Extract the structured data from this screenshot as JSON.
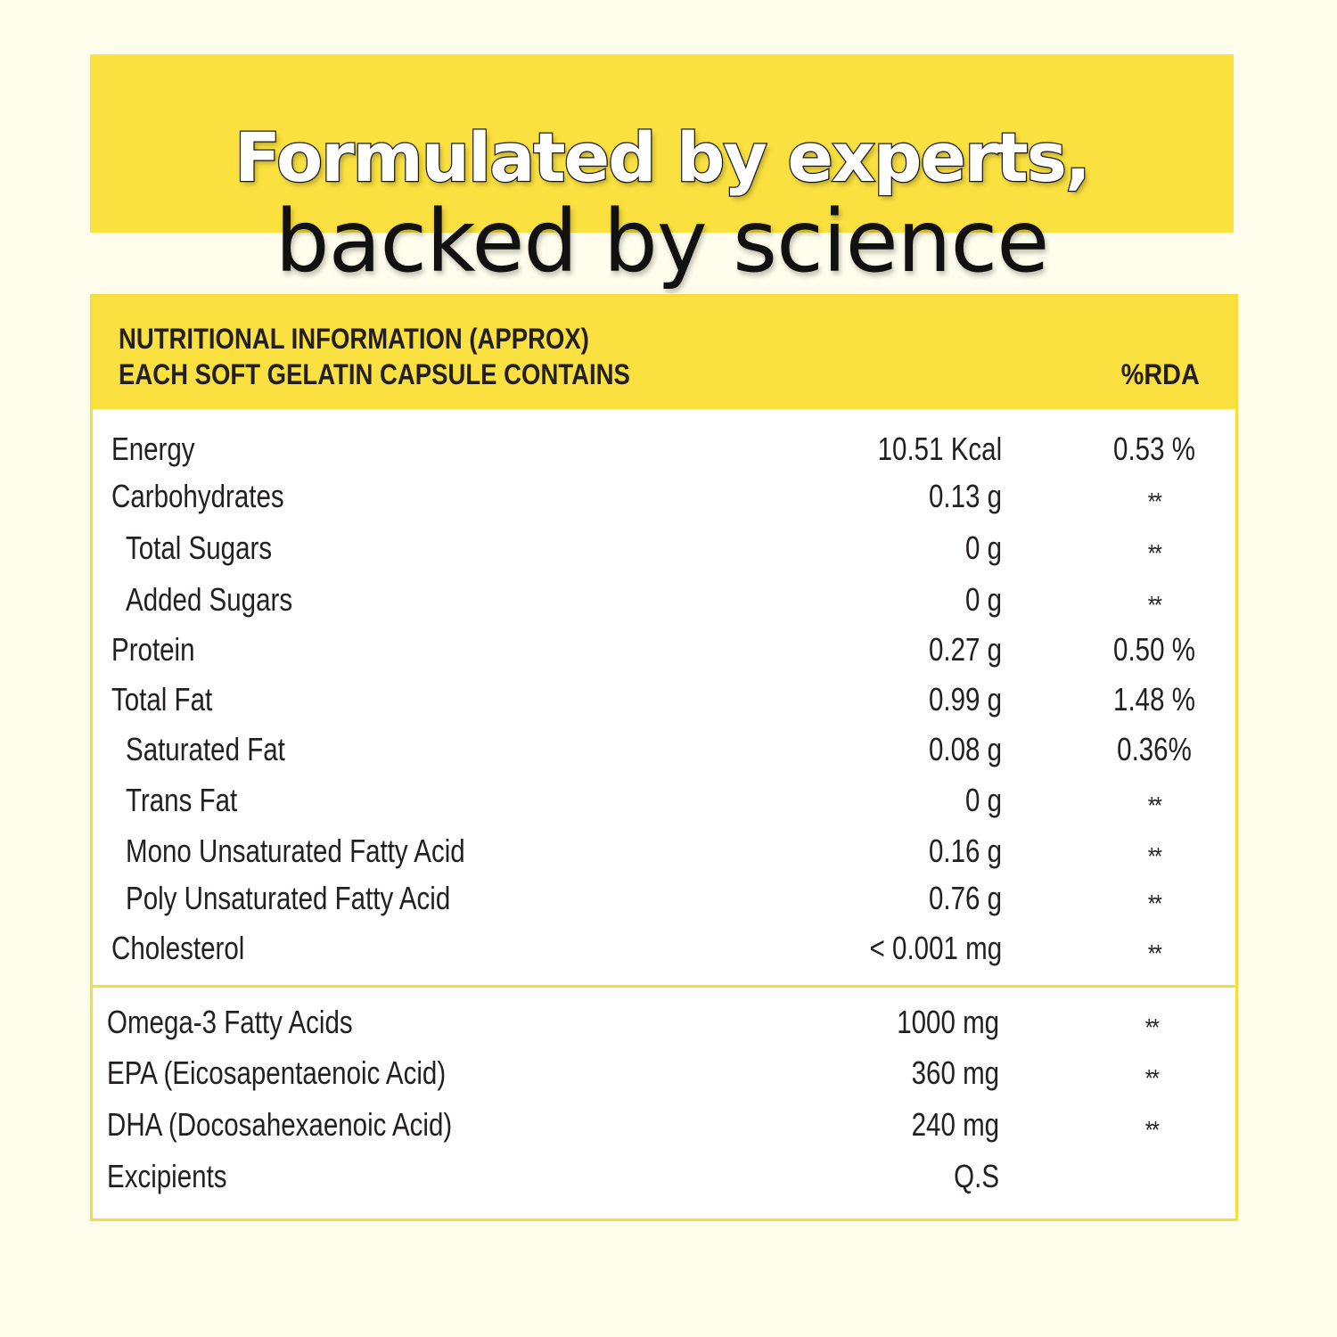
{
  "headline": {
    "line1": "Formulated by experts,",
    "line2": "backed by science"
  },
  "table": {
    "title_line1": "NUTRITIONAL INFORMATION (APPROX)",
    "title_line2": "EACH SOFT GELATIN CAPSULE CONTAINS",
    "rda_header": "%RDA",
    "rows": [
      {
        "name": "Energy",
        "amount": "10.51 Kcal",
        "rda": "0.53 %"
      },
      {
        "name": "Carbohydrates",
        "amount": "0.13 g",
        "rda": "**"
      },
      {
        "name": "Total Sugars",
        "amount": "0 g",
        "rda": "**"
      },
      {
        "name": "Added Sugars",
        "amount": "0 g",
        "rda": "**"
      },
      {
        "name": "Protein",
        "amount": "0.27 g",
        "rda": "0.50 %"
      },
      {
        "name": "Total Fat",
        "amount": "0.99 g",
        "rda": "1.48 %"
      },
      {
        "name": "Saturated Fat",
        "amount": "0.08 g",
        "rda": "0.36%"
      },
      {
        "name": "Trans Fat",
        "amount": "0 g",
        "rda": "**"
      },
      {
        "name": "Mono Unsaturated Fatty Acid",
        "amount": "0.16 g",
        "rda": "**"
      },
      {
        "name": "Poly Unsaturated Fatty Acid",
        "amount": "0.76 g",
        "rda": "**"
      },
      {
        "name": "Cholesterol",
        "amount": "< 0.001 mg",
        "rda": "**"
      },
      {
        "name": "Omega-3 Fatty Acids",
        "amount": "1000 mg",
        "rda": "**"
      },
      {
        "name": "EPA (Eicosapentaenoic Acid)",
        "amount": "360 mg",
        "rda": "**"
      },
      {
        "name": "DHA (Docosahexaenoic Acid)",
        "amount": "240 mg",
        "rda": "**"
      },
      {
        "name": "Excipients",
        "amount": "Q.S",
        "rda": ""
      }
    ]
  }
}
